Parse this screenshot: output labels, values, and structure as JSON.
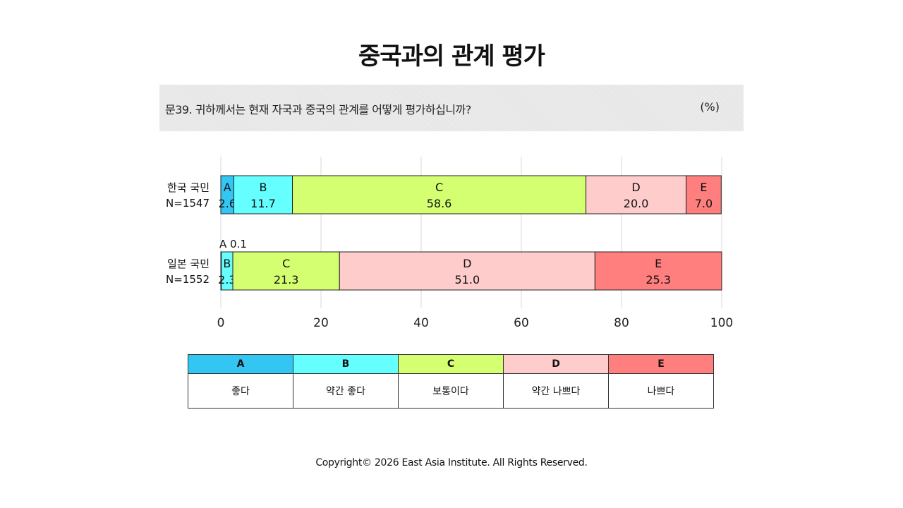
{
  "title": "중국과의 관계 평가",
  "question": "문39. 귀하께서는 현재 자국과 중국의 관계를 어떻게 평가하십니까?",
  "unit": "(%)",
  "copyright": "Copyright© 2026 East Asia Institute. All Rights Reserved.",
  "colors": {
    "A": "#33c6f2",
    "B": "#66ffff",
    "C": "#d4ff70",
    "D": "#ffcccc",
    "E": "#ff7f7f"
  },
  "legend": [
    {
      "code": "A",
      "label": "좋다"
    },
    {
      "code": "B",
      "label": "약간 좋다"
    },
    {
      "code": "C",
      "label": "보통이다"
    },
    {
      "code": "D",
      "label": "약간 나쁘다"
    },
    {
      "code": "E",
      "label": "나쁘다"
    }
  ],
  "chart_data": {
    "type": "bar",
    "orientation": "horizontal",
    "stacked": true,
    "xlim": [
      0,
      100
    ],
    "xticks": [
      0,
      20,
      40,
      60,
      80,
      100
    ],
    "grid": true,
    "categories": [
      {
        "line1": "한국 국민",
        "line2": "N=1547"
      },
      {
        "line1": "일본 국민",
        "line2": "N=1552"
      }
    ],
    "series": [
      {
        "name": "A",
        "values": [
          2.6,
          0.1
        ]
      },
      {
        "name": "B",
        "values": [
          11.7,
          2.3
        ]
      },
      {
        "name": "C",
        "values": [
          58.6,
          21.3
        ]
      },
      {
        "name": "D",
        "values": [
          20.0,
          51.0
        ]
      },
      {
        "name": "E",
        "values": [
          7.0,
          25.3
        ]
      }
    ],
    "outside_labels": [
      {
        "row": 1,
        "series": "A",
        "text": "A 0.1"
      }
    ]
  }
}
